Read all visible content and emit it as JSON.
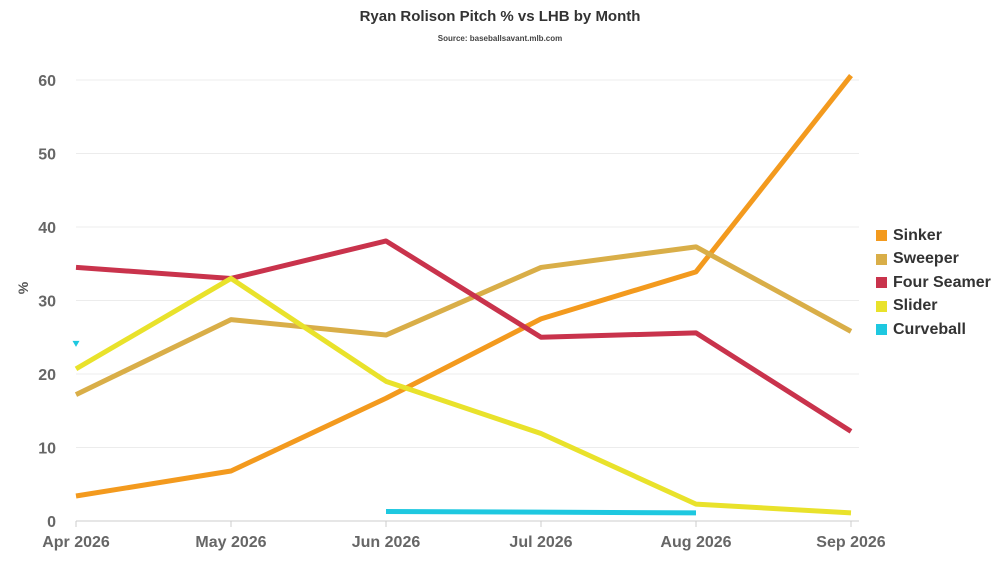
{
  "title": "Ryan Rolison Pitch % vs LHB by Month",
  "subtitle": "Source: baseballsavant.mlb.com",
  "chart_data": {
    "type": "line",
    "title": "Ryan Rolison Pitch % vs LHB by Month",
    "xlabel": "",
    "ylabel": "%",
    "categories": [
      "Apr 2026",
      "May 2026",
      "Jun 2026",
      "Jul 2026",
      "Aug 2026",
      "Sep 2026"
    ],
    "ylim": [
      0,
      60
    ],
    "yticks": [
      0,
      10,
      20,
      30,
      40,
      50,
      60
    ],
    "grid": true,
    "legend_position": "right",
    "series": [
      {
        "name": "Sinker",
        "color": "#f39a1e",
        "values": [
          3.4,
          6.8,
          16.7,
          27.5,
          33.9,
          60.6
        ]
      },
      {
        "name": "Sweeper",
        "color": "#d9ae48",
        "values": [
          17.2,
          27.4,
          25.3,
          34.5,
          37.3,
          25.8
        ]
      },
      {
        "name": "Four Seamer",
        "color": "#c9334c",
        "values": [
          34.5,
          33.0,
          38.1,
          25.0,
          25.6,
          12.2
        ]
      },
      {
        "name": "Slider",
        "color": "#e9e22b",
        "values": [
          20.7,
          33.0,
          19.0,
          11.9,
          2.3,
          1.1
        ]
      },
      {
        "name": "Curveball",
        "color": "#1ec8e0",
        "values": [
          24.1,
          null,
          1.3,
          1.2,
          1.1,
          null
        ]
      }
    ]
  }
}
